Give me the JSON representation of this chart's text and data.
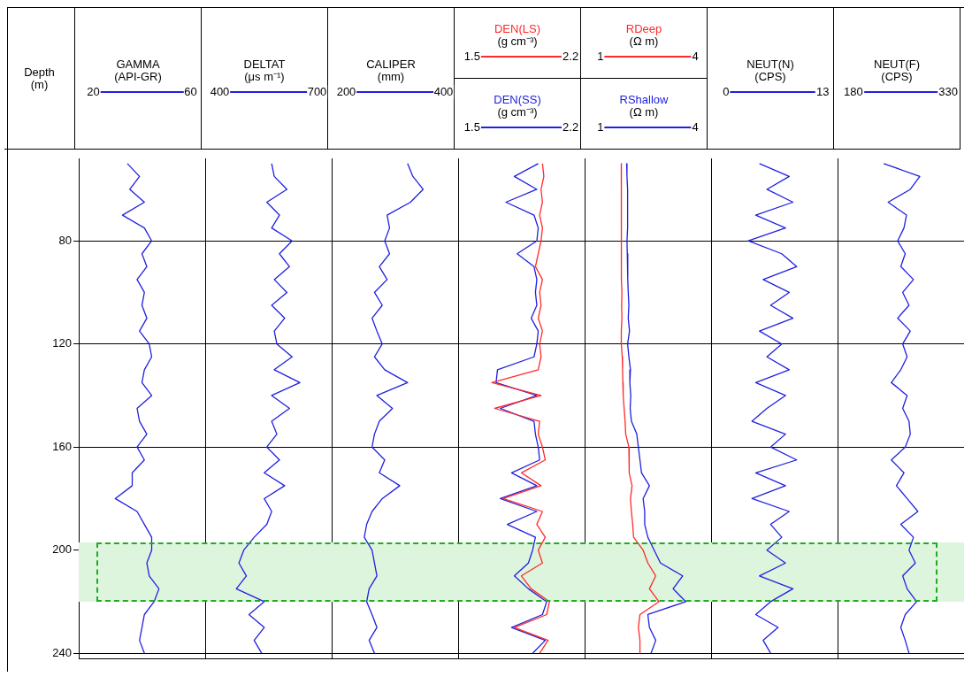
{
  "chart_data": [
    {
      "type": "line",
      "orientation": "horizontal",
      "title": "GAMMA",
      "xlabel": "(API-GR)",
      "ylabel": "Depth (m)",
      "xlim": [
        14,
        66
      ],
      "xticks": [
        20,
        60
      ],
      "ylim": [
        242,
        48
      ],
      "yticks": [
        80,
        120,
        160,
        200,
        240
      ],
      "grid": "y",
      "x": [
        50,
        55,
        60,
        65,
        70,
        75,
        80,
        85,
        90,
        95,
        100,
        105,
        110,
        115,
        120,
        125,
        130,
        135,
        140,
        145,
        150,
        155,
        160,
        165,
        170,
        175,
        180,
        185,
        190,
        195,
        200,
        205,
        210,
        215,
        220,
        225,
        230,
        235,
        240
      ],
      "bands": [
        {
          "axis": "y",
          "from": 197,
          "to": 220,
          "color": "#ddf5dd"
        }
      ],
      "series": [
        {
          "color": "#2020e0",
          "values": [
            34,
            39,
            35,
            41,
            32,
            41,
            44,
            40,
            42,
            38,
            41,
            40,
            42,
            39,
            43,
            44,
            41,
            40,
            44,
            38,
            39,
            42,
            38,
            41,
            36,
            36,
            29,
            38,
            41,
            44,
            44,
            42,
            43,
            47,
            45,
            41,
            40,
            39,
            41
          ]
        }
      ]
    },
    {
      "type": "line",
      "orientation": "horizontal",
      "title": "DELTAT",
      "xlabel": "(μs m⁻¹)",
      "xlim": [
        355,
        745
      ],
      "xticks": [
        400,
        700
      ],
      "ylim": [
        242,
        48
      ],
      "yticks": [
        80,
        120,
        160,
        200,
        240
      ],
      "grid": "y",
      "tick_labels": "x",
      "x": [
        50,
        55,
        60,
        65,
        70,
        75,
        80,
        85,
        90,
        95,
        100,
        105,
        110,
        115,
        120,
        125,
        130,
        135,
        140,
        145,
        150,
        155,
        160,
        165,
        170,
        175,
        180,
        185,
        190,
        195,
        200,
        205,
        210,
        215,
        220,
        225,
        230,
        235,
        240
      ],
      "bands": [
        {
          "axis": "y",
          "from": 197,
          "to": 220,
          "color": "#ddf5dd"
        }
      ],
      "series": [
        {
          "color": "#2020e0",
          "values": [
            560,
            568,
            607,
            545,
            584,
            560,
            623,
            584,
            615,
            568,
            607,
            560,
            600,
            568,
            576,
            623,
            568,
            647,
            560,
            615,
            560,
            576,
            545,
            584,
            537,
            600,
            537,
            560,
            545,
            506,
            474,
            459,
            482,
            451,
            537,
            490,
            537,
            506,
            529
          ]
        }
      ]
    },
    {
      "type": "line",
      "orientation": "horizontal",
      "title": "CALIPER",
      "xlabel": "(mm)",
      "xlim": [
        170,
        430
      ],
      "xticks": [
        200,
        400
      ],
      "ylim": [
        242,
        48
      ],
      "yticks": [
        80,
        120,
        160,
        200,
        240
      ],
      "grid": "y",
      "tick_labels": "x",
      "x": [
        50,
        55,
        60,
        65,
        70,
        75,
        80,
        85,
        90,
        95,
        100,
        105,
        110,
        115,
        120,
        125,
        130,
        135,
        140,
        145,
        150,
        155,
        160,
        165,
        170,
        175,
        180,
        185,
        190,
        195,
        200,
        205,
        210,
        215,
        220,
        225,
        230,
        235,
        240
      ],
      "bands": [
        {
          "axis": "y",
          "from": 197,
          "to": 220,
          "color": "#ddf5dd"
        }
      ],
      "series": [
        {
          "color": "#2020e0",
          "values": [
            326,
            337,
            358,
            332,
            284,
            289,
            279,
            289,
            268,
            284,
            258,
            274,
            253,
            263,
            274,
            258,
            279,
            326,
            263,
            295,
            268,
            258,
            253,
            279,
            268,
            310,
            274,
            253,
            242,
            237,
            253,
            258,
            263,
            247,
            242,
            253,
            263,
            247,
            258
          ]
        }
      ]
    },
    {
      "type": "line",
      "orientation": "horizontal",
      "xlabel": "(g cm⁻³)",
      "xlim": [
        1.4,
        2.3
      ],
      "xticks": [
        1.5,
        2.2
      ],
      "x2label": "(g cm⁻³)",
      "x2lim": [
        1.4,
        2.3
      ],
      "x2ticks": [
        1.5,
        2.2
      ],
      "ylim": [
        242,
        48
      ],
      "yticks": [
        80,
        120,
        160,
        200,
        240
      ],
      "grid": "y",
      "tick_labels": "x",
      "x": [
        50,
        55,
        60,
        65,
        70,
        75,
        80,
        85,
        90,
        95,
        100,
        105,
        110,
        115,
        120,
        125,
        130,
        135,
        140,
        145,
        150,
        155,
        160,
        165,
        170,
        175,
        180,
        185,
        190,
        195,
        200,
        205,
        210,
        215,
        220,
        225,
        230,
        235,
        240
      ],
      "bands": [
        {
          "axis": "y",
          "from": 197,
          "to": 220,
          "color": "#ddf5dd"
        }
      ],
      "series": [
        {
          "name": "DEN(LS)",
          "color": "#ff2a2a",
          "values": [
            2.0,
            2.01,
            1.99,
            2.0,
            1.98,
            2.0,
            1.99,
            1.97,
            1.95,
            2.0,
            1.98,
            1.99,
            1.97,
            2.0,
            1.98,
            1.99,
            1.97,
            1.64,
            1.99,
            1.66,
            1.98,
            1.97,
            2.0,
            2.02,
            1.85,
            1.99,
            1.72,
            2.0,
            1.96,
            2.02,
            1.97,
            2.0,
            1.85,
            1.92,
            2.05,
            2.03,
            1.8,
            2.04,
            1.98
          ]
        },
        {
          "name": "DEN(SS)",
          "color": "#2020e0",
          "axis": "x2",
          "values": [
            1.97,
            1.8,
            1.96,
            1.74,
            1.94,
            1.97,
            1.96,
            1.82,
            1.94,
            1.96,
            1.95,
            1.96,
            1.92,
            1.97,
            1.96,
            1.94,
            1.68,
            1.67,
            1.96,
            1.7,
            1.94,
            1.95,
            1.97,
            1.98,
            1.78,
            1.96,
            1.7,
            1.96,
            1.75,
            1.95,
            1.93,
            1.9,
            1.8,
            1.9,
            2.03,
            2.0,
            1.78,
            2.02,
            1.93
          ]
        }
      ]
    },
    {
      "type": "line",
      "orientation": "horizontal",
      "xlabel": "(Ω m)",
      "xlim": [
        0.5,
        4.5
      ],
      "xticks": [
        1,
        4
      ],
      "x2label": "(Ω m)",
      "x2lim": [
        0.5,
        4.5
      ],
      "x2ticks": [
        1,
        4
      ],
      "ylim": [
        242,
        48
      ],
      "yticks": [
        80,
        120,
        160,
        200,
        240
      ],
      "grid": "y",
      "tick_labels": "x",
      "x": [
        50,
        55,
        60,
        65,
        70,
        75,
        80,
        85,
        90,
        95,
        100,
        105,
        110,
        115,
        120,
        125,
        130,
        135,
        140,
        145,
        150,
        155,
        160,
        165,
        170,
        175,
        180,
        185,
        190,
        195,
        200,
        205,
        210,
        215,
        220,
        225,
        230,
        235,
        240
      ],
      "bands": [
        {
          "axis": "y",
          "from": 197,
          "to": 220,
          "color": "#ddf5dd"
        }
      ],
      "series": [
        {
          "name": "RDeep",
          "color": "#ff2a2a",
          "values": [
            1.66,
            1.66,
            1.67,
            1.66,
            1.66,
            1.67,
            1.65,
            1.66,
            1.67,
            1.66,
            1.68,
            1.67,
            1.68,
            1.66,
            1.66,
            1.69,
            1.7,
            1.71,
            1.72,
            1.75,
            1.78,
            1.8,
            1.9,
            1.92,
            1.9,
            2.0,
            1.95,
            1.98,
            2.02,
            2.05,
            2.35,
            2.5,
            2.75,
            2.55,
            2.85,
            2.25,
            2.2,
            2.25,
            2.25
          ]
        },
        {
          "name": "RShallow",
          "color": "#2020e0",
          "axis": "x2",
          "values": [
            1.83,
            1.84,
            1.86,
            1.87,
            1.86,
            1.85,
            1.84,
            1.85,
            1.86,
            1.87,
            1.88,
            1.9,
            1.88,
            1.92,
            1.86,
            1.9,
            1.95,
            1.93,
            1.96,
            1.94,
            1.98,
            2.15,
            2.2,
            2.25,
            2.3,
            2.55,
            2.35,
            2.4,
            2.4,
            2.5,
            2.7,
            2.9,
            3.6,
            3.3,
            3.7,
            2.5,
            2.55,
            2.75,
            2.6
          ]
        }
      ]
    },
    {
      "type": "line",
      "orientation": "horizontal",
      "title": "NEUT(N)",
      "xlabel": "(CPS)",
      "xlim": [
        -2,
        15
      ],
      "xticks": [
        0,
        13
      ],
      "ylim": [
        242,
        48
      ],
      "yticks": [
        80,
        120,
        160,
        200,
        240
      ],
      "grid": "y",
      "tick_labels": "x",
      "x": [
        50,
        55,
        60,
        65,
        70,
        75,
        80,
        85,
        90,
        95,
        100,
        105,
        110,
        115,
        120,
        125,
        130,
        135,
        140,
        145,
        150,
        155,
        160,
        165,
        170,
        175,
        180,
        185,
        190,
        195,
        200,
        205,
        210,
        215,
        220,
        225,
        230,
        235,
        240
      ],
      "bands": [
        {
          "axis": "y",
          "from": 197,
          "to": 220,
          "color": "#ddf5dd"
        }
      ],
      "series": [
        {
          "color": "#2020e0",
          "values": [
            4.5,
            8.5,
            5.5,
            9,
            4,
            8,
            3,
            7.5,
            9.5,
            5,
            8.5,
            6,
            9,
            4.5,
            7.5,
            5.5,
            8.5,
            4,
            8,
            5.5,
            3.5,
            8,
            6,
            9.5,
            4,
            8,
            3.5,
            8.5,
            6,
            7.5,
            5.5,
            8,
            4.5,
            9,
            6,
            4,
            7,
            5,
            6
          ]
        }
      ]
    },
    {
      "type": "line",
      "orientation": "horizontal",
      "title": "NEUT(F)",
      "xlabel": "(CPS)",
      "xlim": [
        155,
        355
      ],
      "xticks": [
        180,
        330
      ],
      "ylim": [
        242,
        48
      ],
      "yticks": [
        80,
        120,
        160,
        200,
        240
      ],
      "grid": "y",
      "tick_labels": "x",
      "x": [
        50,
        55,
        60,
        65,
        70,
        75,
        80,
        85,
        90,
        95,
        100,
        105,
        110,
        115,
        120,
        125,
        130,
        135,
        140,
        145,
        150,
        155,
        160,
        165,
        170,
        175,
        180,
        185,
        190,
        195,
        200,
        205,
        210,
        215,
        220,
        225,
        230,
        235,
        240
      ],
      "bands": [
        {
          "axis": "y",
          "from": 197,
          "to": 220,
          "color": "#ddf5dd"
        }
      ],
      "series": [
        {
          "color": "#2020e0",
          "values": [
            228,
            285,
            270,
            235,
            264,
            260,
            250,
            262,
            255,
            275,
            258,
            268,
            250,
            270,
            258,
            265,
            255,
            240,
            265,
            258,
            268,
            270,
            262,
            240,
            260,
            248,
            265,
            282,
            255,
            275,
            268,
            278,
            258,
            265,
            280,
            262,
            255,
            262,
            268
          ]
        }
      ]
    }
  ]
}
